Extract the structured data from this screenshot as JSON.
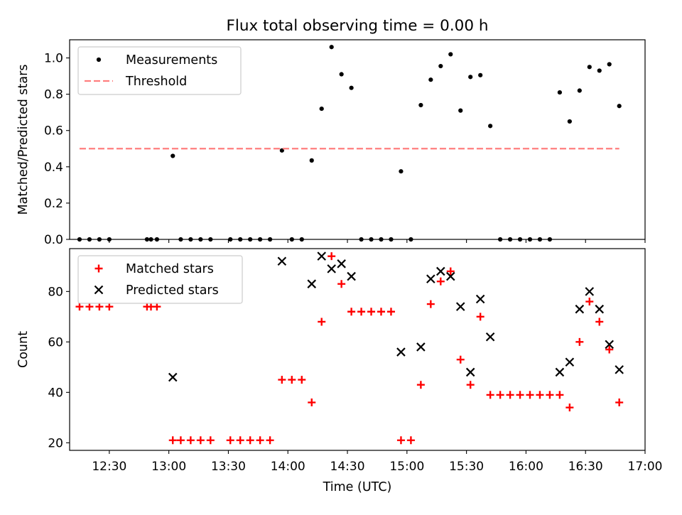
{
  "title": "Flux total observing time = 0.00 h",
  "colors": {
    "measurement": "#000000",
    "threshold": "#ff7f7f",
    "matched": "#ff0000",
    "predicted": "#000000"
  },
  "chart_data": [
    {
      "type": "scatter",
      "title": "Flux total observing time = 0.00 h",
      "xlabel": "",
      "ylabel": "Matched/Predicted stars",
      "xlim": [
        "12:10",
        "17:00"
      ],
      "ylim": [
        0,
        1.1
      ],
      "yticks": [
        "0.0",
        "0.2",
        "0.4",
        "0.6",
        "0.8",
        "1.0"
      ],
      "legend": "upper-left",
      "grid": false,
      "series": [
        {
          "name": "Measurements",
          "marker": "dot",
          "points": [
            [
              "12:15",
              0
            ],
            [
              "12:20",
              0
            ],
            [
              "12:25",
              0
            ],
            [
              "12:30",
              0
            ],
            [
              "12:49",
              0
            ],
            [
              "12:51",
              0
            ],
            [
              "12:54",
              0
            ],
            [
              "13:02",
              0.46
            ],
            [
              "13:06",
              0
            ],
            [
              "13:11",
              0
            ],
            [
              "13:16",
              0
            ],
            [
              "13:21",
              0
            ],
            [
              "13:31",
              0
            ],
            [
              "13:36",
              0
            ],
            [
              "13:41",
              0
            ],
            [
              "13:46",
              0
            ],
            [
              "13:51",
              0
            ],
            [
              "13:57",
              0.49
            ],
            [
              "14:02",
              0
            ],
            [
              "14:07",
              0
            ],
            [
              "14:12",
              0.435
            ],
            [
              "14:17",
              0.72
            ],
            [
              "14:22",
              1.06
            ],
            [
              "14:27",
              0.91
            ],
            [
              "14:32",
              0.835
            ],
            [
              "14:37",
              0
            ],
            [
              "14:42",
              0
            ],
            [
              "14:47",
              0
            ],
            [
              "14:52",
              0
            ],
            [
              "14:57",
              0.375
            ],
            [
              "15:02",
              0
            ],
            [
              "15:07",
              0.74
            ],
            [
              "15:12",
              0.88
            ],
            [
              "15:17",
              0.955
            ],
            [
              "15:22",
              1.02
            ],
            [
              "15:27",
              0.71
            ],
            [
              "15:32",
              0.895
            ],
            [
              "15:37",
              0.905
            ],
            [
              "15:42",
              0.625
            ],
            [
              "15:47",
              0
            ],
            [
              "15:52",
              0
            ],
            [
              "15:57",
              0
            ],
            [
              "16:02",
              0
            ],
            [
              "16:07",
              0
            ],
            [
              "16:12",
              0
            ],
            [
              "16:17",
              0.81
            ],
            [
              "16:22",
              0.65
            ],
            [
              "16:27",
              0.82
            ],
            [
              "16:32",
              0.95
            ],
            [
              "16:37",
              0.93
            ],
            [
              "16:42",
              0.965
            ],
            [
              "16:47",
              0.735
            ]
          ]
        },
        {
          "name": "Threshold",
          "style": "dashed",
          "points": [
            [
              "12:15",
              0.5
            ],
            [
              "16:47",
              0.5
            ]
          ]
        }
      ]
    },
    {
      "type": "scatter",
      "xlabel": "Time (UTC)",
      "ylabel": "Count",
      "xlim": [
        "12:10",
        "17:00"
      ],
      "ylim": [
        17,
        97
      ],
      "yticks": [
        "20",
        "40",
        "60",
        "80"
      ],
      "xticks": [
        "12:30",
        "13:00",
        "13:30",
        "14:00",
        "14:30",
        "15:00",
        "15:30",
        "16:00",
        "16:30",
        "17:00"
      ],
      "legend": "upper-left",
      "grid": false,
      "series": [
        {
          "name": "Matched stars",
          "marker": "plus",
          "points": [
            [
              "12:15",
              74
            ],
            [
              "12:20",
              74
            ],
            [
              "12:25",
              74
            ],
            [
              "12:30",
              74
            ],
            [
              "12:49",
              74
            ],
            [
              "12:51",
              74
            ],
            [
              "12:54",
              74
            ],
            [
              "13:02",
              21
            ],
            [
              "13:06",
              21
            ],
            [
              "13:11",
              21
            ],
            [
              "13:16",
              21
            ],
            [
              "13:21",
              21
            ],
            [
              "13:31",
              21
            ],
            [
              "13:36",
              21
            ],
            [
              "13:41",
              21
            ],
            [
              "13:46",
              21
            ],
            [
              "13:51",
              21
            ],
            [
              "13:57",
              45
            ],
            [
              "14:02",
              45
            ],
            [
              "14:07",
              45
            ],
            [
              "14:12",
              36
            ],
            [
              "14:17",
              68
            ],
            [
              "14:22",
              94
            ],
            [
              "14:27",
              83
            ],
            [
              "14:32",
              72
            ],
            [
              "14:37",
              72
            ],
            [
              "14:42",
              72
            ],
            [
              "14:47",
              72
            ],
            [
              "14:52",
              72
            ],
            [
              "14:57",
              21
            ],
            [
              "15:02",
              21
            ],
            [
              "15:07",
              43
            ],
            [
              "15:12",
              75
            ],
            [
              "15:17",
              84
            ],
            [
              "15:22",
              88
            ],
            [
              "15:27",
              53
            ],
            [
              "15:32",
              43
            ],
            [
              "15:37",
              70
            ],
            [
              "15:42",
              39
            ],
            [
              "15:47",
              39
            ],
            [
              "15:52",
              39
            ],
            [
              "15:57",
              39
            ],
            [
              "16:02",
              39
            ],
            [
              "16:07",
              39
            ],
            [
              "16:12",
              39
            ],
            [
              "16:17",
              39
            ],
            [
              "16:22",
              34
            ],
            [
              "16:27",
              60
            ],
            [
              "16:32",
              76
            ],
            [
              "16:37",
              68
            ],
            [
              "16:42",
              57
            ],
            [
              "16:47",
              36
            ]
          ]
        },
        {
          "name": "Predicted stars",
          "marker": "x",
          "points": [
            [
              "13:02",
              46
            ],
            [
              "13:57",
              92
            ],
            [
              "14:12",
              83
            ],
            [
              "14:17",
              94
            ],
            [
              "14:22",
              89
            ],
            [
              "14:27",
              91
            ],
            [
              "14:32",
              86
            ],
            [
              "14:57",
              56
            ],
            [
              "15:07",
              58
            ],
            [
              "15:12",
              85
            ],
            [
              "15:17",
              88
            ],
            [
              "15:22",
              86
            ],
            [
              "15:27",
              74
            ],
            [
              "15:32",
              48
            ],
            [
              "15:37",
              77
            ],
            [
              "15:42",
              62
            ],
            [
              "16:17",
              48
            ],
            [
              "16:22",
              52
            ],
            [
              "16:27",
              73
            ],
            [
              "16:32",
              80
            ],
            [
              "16:37",
              73
            ],
            [
              "16:42",
              59
            ],
            [
              "16:47",
              49
            ]
          ]
        }
      ]
    }
  ]
}
